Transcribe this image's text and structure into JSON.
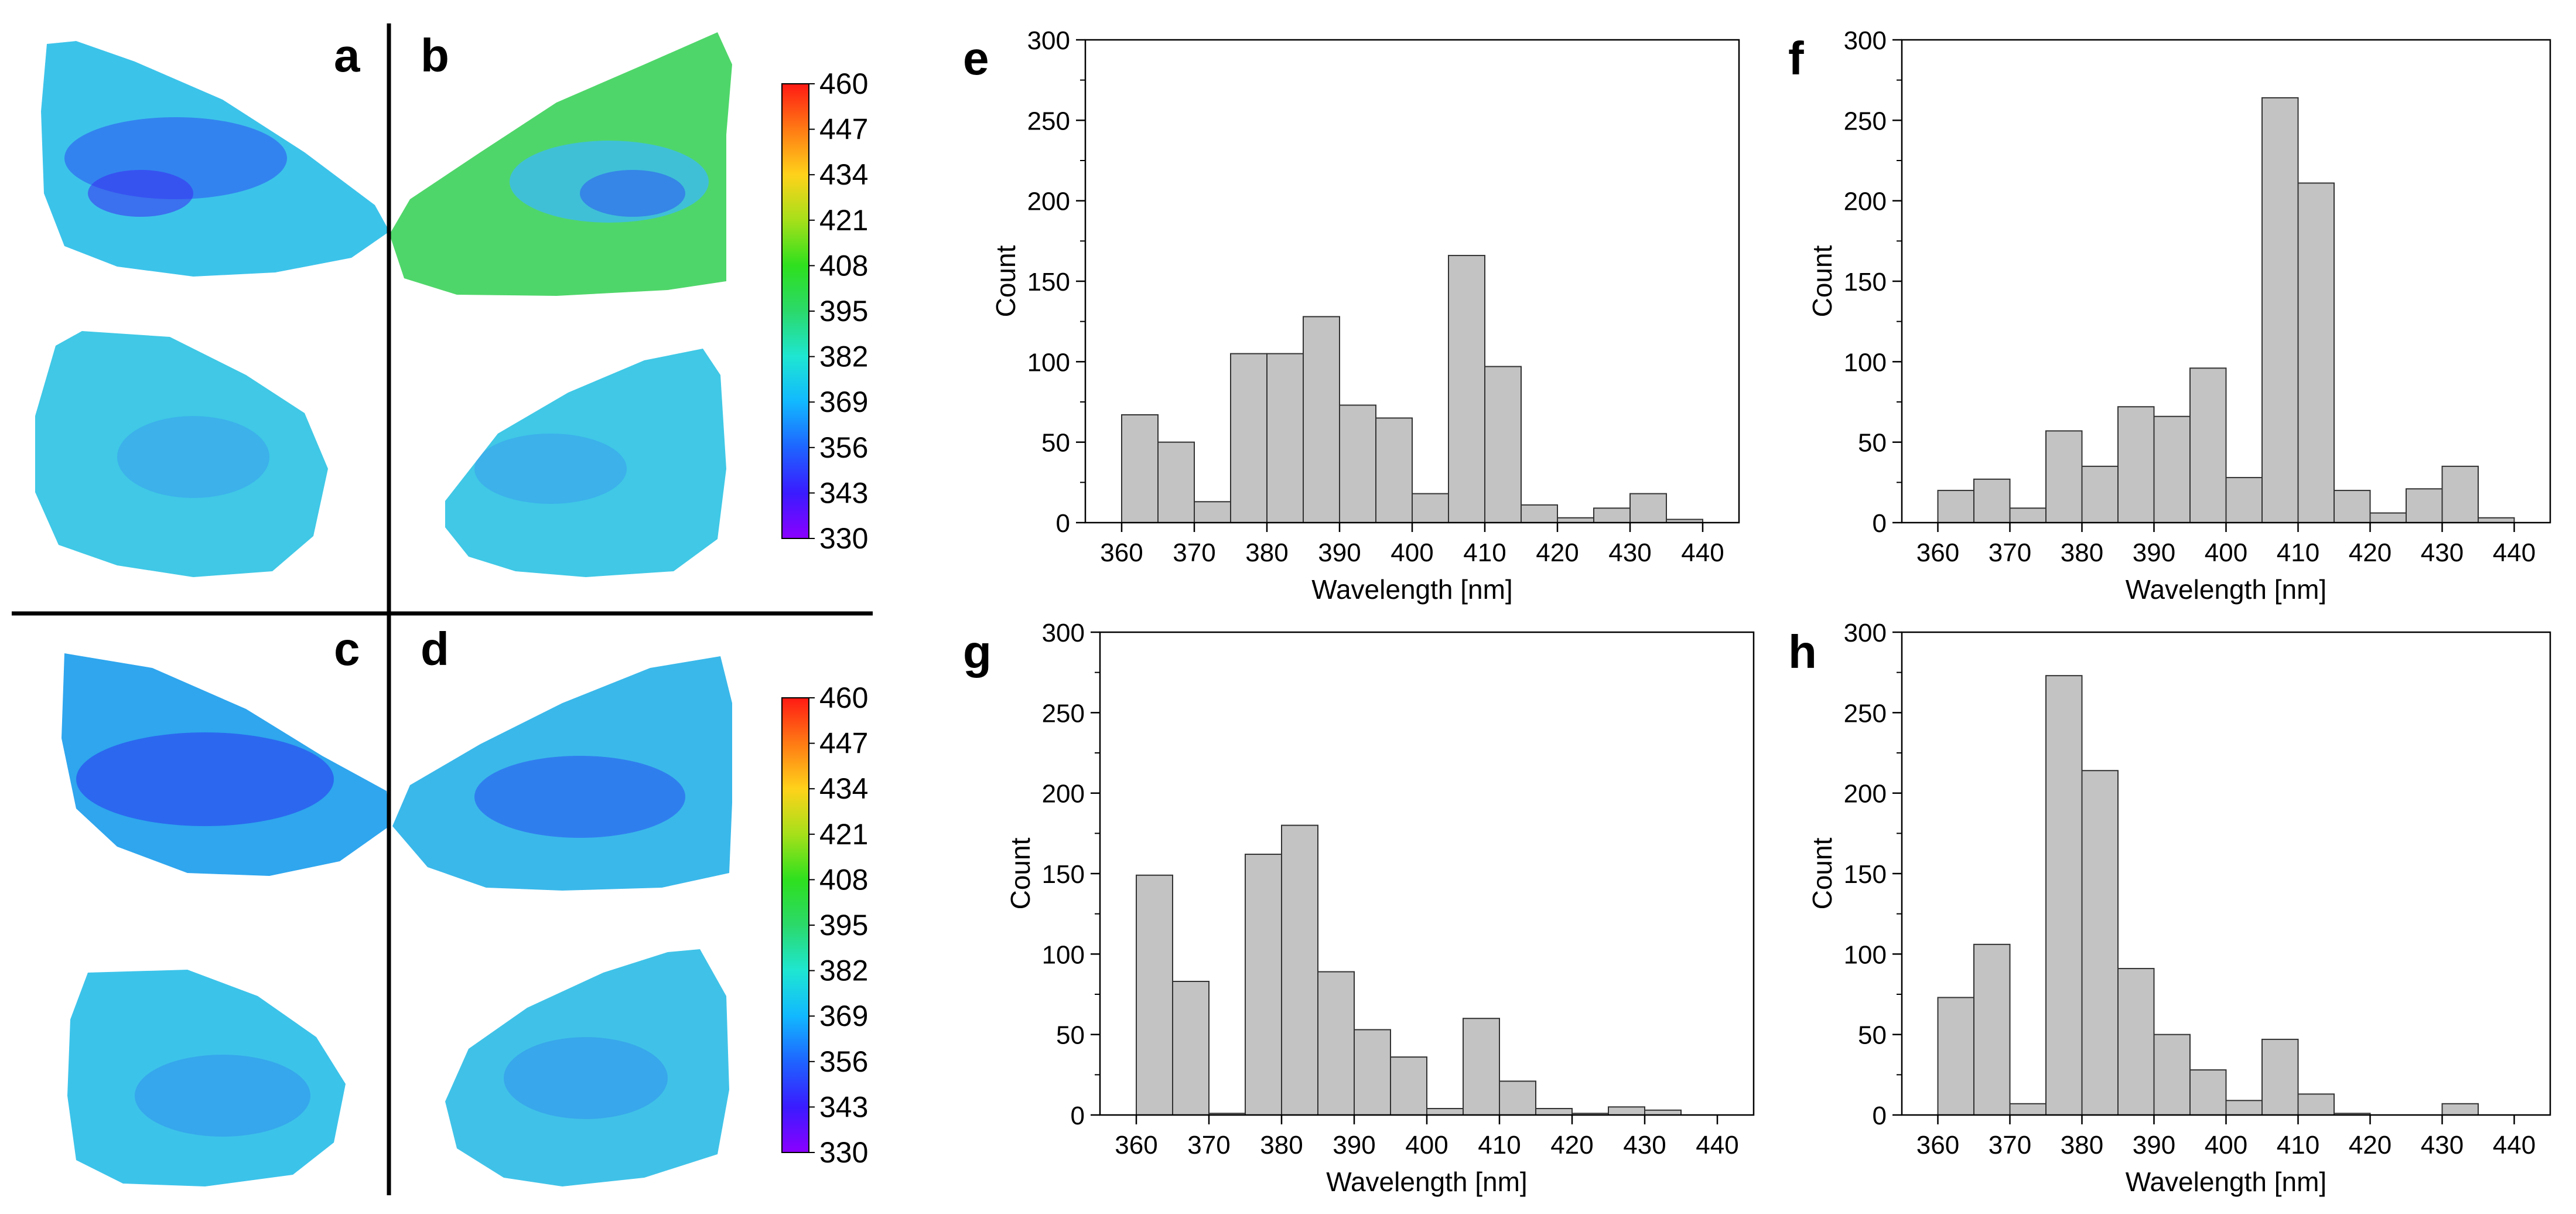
{
  "figure": {
    "left_block": {
      "panel_labels": [
        "a",
        "b",
        "c",
        "d"
      ],
      "colorbar": {
        "ticks": [
          "460",
          "447",
          "434",
          "421",
          "408",
          "395",
          "382",
          "369",
          "356",
          "343",
          "330"
        ],
        "range": [
          330,
          460
        ],
        "colors": [
          "#8b00ff",
          "#3a1bff",
          "#1e64ff",
          "#12b8ff",
          "#1ee6d2",
          "#2bd96a",
          "#2ee01e",
          "#a6e01a",
          "#ffd21a",
          "#ff7a14",
          "#ff1a14"
        ]
      },
      "maps": [
        {
          "panel": "a",
          "mean_nm": 372
        },
        {
          "panel": "b",
          "mean_nm": 395
        },
        {
          "panel": "c",
          "mean_nm": 366
        },
        {
          "panel": "d",
          "mean_nm": 372
        }
      ]
    }
  },
  "chart_data": [
    {
      "type": "bar",
      "panel": "e",
      "xlabel": "Wavelength [nm]",
      "ylabel": "Count",
      "xlim": [
        355,
        445
      ],
      "ylim": [
        0,
        300
      ],
      "x_ticks": [
        "360",
        "370",
        "380",
        "390",
        "400",
        "410",
        "420",
        "430",
        "440"
      ],
      "y_ticks": [
        "0",
        "50",
        "100",
        "150",
        "200",
        "250",
        "300"
      ],
      "bin_width": 5,
      "bin_starts": [
        360,
        365,
        370,
        375,
        380,
        385,
        390,
        395,
        400,
        405,
        410,
        415,
        420,
        425,
        430,
        435
      ],
      "values": [
        67,
        50,
        13,
        105,
        105,
        128,
        73,
        65,
        18,
        166,
        97,
        11,
        3,
        9,
        18,
        2
      ]
    },
    {
      "type": "bar",
      "panel": "f",
      "xlabel": "Wavelength [nm]",
      "ylabel": "Count",
      "xlim": [
        355,
        445
      ],
      "ylim": [
        0,
        300
      ],
      "x_ticks": [
        "360",
        "370",
        "380",
        "390",
        "400",
        "410",
        "420",
        "430",
        "440"
      ],
      "y_ticks": [
        "0",
        "50",
        "100",
        "150",
        "200",
        "250",
        "300"
      ],
      "bin_width": 5,
      "bin_starts": [
        360,
        365,
        370,
        375,
        380,
        385,
        390,
        395,
        400,
        405,
        410,
        415,
        420,
        425,
        430,
        435
      ],
      "values": [
        20,
        27,
        9,
        57,
        35,
        72,
        66,
        96,
        28,
        264,
        211,
        20,
        6,
        21,
        35,
        3
      ]
    },
    {
      "type": "bar",
      "panel": "g",
      "xlabel": "Wavelength [nm]",
      "ylabel": "Count",
      "xlim": [
        355,
        445
      ],
      "ylim": [
        0,
        300
      ],
      "x_ticks": [
        "360",
        "370",
        "380",
        "390",
        "400",
        "410",
        "420",
        "430",
        "440"
      ],
      "y_ticks": [
        "0",
        "50",
        "100",
        "150",
        "200",
        "250",
        "300"
      ],
      "bin_width": 5,
      "bin_starts": [
        360,
        365,
        370,
        375,
        380,
        385,
        390,
        395,
        400,
        405,
        410,
        415,
        420,
        425,
        430,
        435
      ],
      "values": [
        149,
        83,
        1,
        162,
        180,
        89,
        53,
        36,
        4,
        60,
        21,
        4,
        1,
        5,
        3,
        0
      ]
    },
    {
      "type": "bar",
      "panel": "h",
      "xlabel": "Wavelength [nm]",
      "ylabel": "Count",
      "xlim": [
        355,
        445
      ],
      "ylim": [
        0,
        300
      ],
      "x_ticks": [
        "360",
        "370",
        "380",
        "390",
        "400",
        "410",
        "420",
        "430",
        "440"
      ],
      "y_ticks": [
        "0",
        "50",
        "100",
        "150",
        "200",
        "250",
        "300"
      ],
      "bin_width": 5,
      "bin_starts": [
        360,
        365,
        370,
        375,
        380,
        385,
        390,
        395,
        400,
        405,
        410,
        415,
        420,
        425,
        430,
        435
      ],
      "values": [
        73,
        106,
        7,
        273,
        214,
        91,
        50,
        28,
        9,
        47,
        13,
        1,
        0,
        0,
        7,
        0
      ]
    }
  ]
}
